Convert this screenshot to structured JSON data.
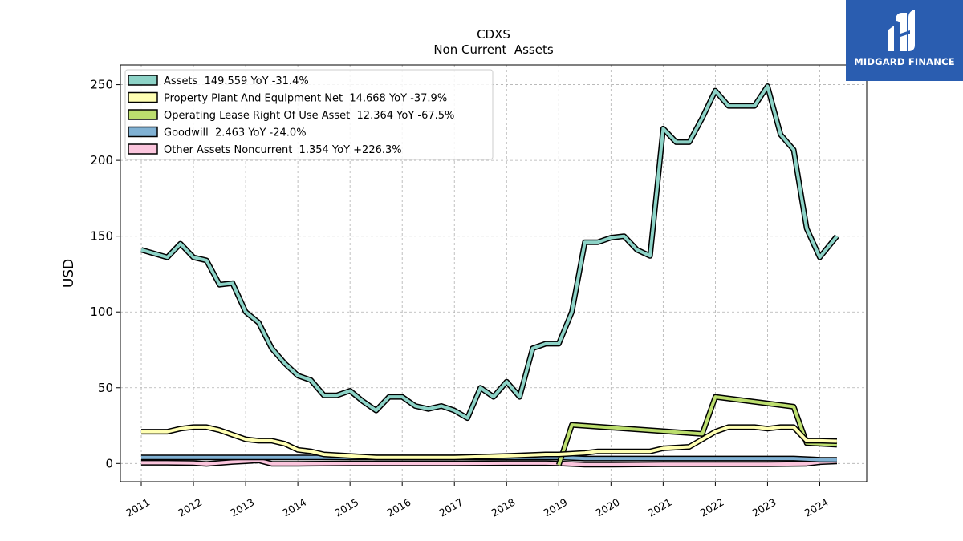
{
  "branding": {
    "logo_text": "MIDGARD FINANCE",
    "logo_bg_color": "#2a5db0"
  },
  "chart_data": {
    "type": "line",
    "title": "CDXS",
    "subtitle": "Non Current  Assets",
    "ylabel": "USD",
    "xlabel": "",
    "xlim": [
      2010.6,
      2024.9
    ],
    "ylim": [
      -12,
      263
    ],
    "yticks": [
      0,
      50,
      100,
      150,
      200,
      250
    ],
    "xticks": [
      "2011",
      "2012",
      "2013",
      "2014",
      "2015",
      "2016",
      "2017",
      "2018",
      "2019",
      "2020",
      "2021",
      "2022",
      "2023",
      "2024"
    ],
    "grid": true,
    "legend_position": "top-left",
    "series": [
      {
        "name": "Assets",
        "legend_label": "Assets  149.559 YoY -31.4%",
        "color": "#8dd3c7",
        "x": [
          2011.0,
          2011.5,
          2011.75,
          2012.0,
          2012.25,
          2012.5,
          2012.75,
          2013.0,
          2013.25,
          2013.5,
          2013.75,
          2014.0,
          2014.25,
          2014.5,
          2014.75,
          2015.0,
          2015.25,
          2015.5,
          2015.75,
          2016.0,
          2016.25,
          2016.5,
          2016.75,
          2017.0,
          2017.25,
          2017.5,
          2017.75,
          2018.0,
          2018.25,
          2018.5,
          2018.75,
          2019.0,
          2019.25,
          2019.5,
          2019.75,
          2020.0,
          2020.25,
          2020.5,
          2020.75,
          2021.0,
          2021.25,
          2021.5,
          2021.75,
          2022.0,
          2022.25,
          2022.5,
          2022.75,
          2023.0,
          2023.25,
          2023.5,
          2023.75,
          2024.0,
          2024.33
        ],
        "values": [
          141,
          136,
          145,
          136,
          134,
          118,
          119,
          100,
          93,
          76,
          66,
          58,
          55,
          45,
          45,
          48,
          41,
          35,
          44,
          44,
          38,
          36,
          38,
          35,
          30,
          50,
          44,
          54,
          44,
          76,
          79,
          79,
          100,
          146,
          146,
          149,
          150,
          141,
          137,
          221,
          212,
          212,
          228,
          246,
          236,
          236,
          236,
          249,
          217,
          207,
          155,
          136,
          150
        ]
      },
      {
        "name": "Property Plant And Equipment Net",
        "legend_label": "Property Plant And Equipment Net  14.668 YoY -37.9%",
        "color": "#ffffb3",
        "x": [
          2011.0,
          2011.5,
          2011.75,
          2012.0,
          2012.25,
          2012.5,
          2012.75,
          2013.0,
          2013.25,
          2013.5,
          2013.75,
          2014.0,
          2014.25,
          2014.5,
          2015.0,
          2015.5,
          2016.0,
          2017.0,
          2018.0,
          2018.75,
          2019.0,
          2019.5,
          2019.75,
          2020.0,
          2020.5,
          2020.75,
          2021.0,
          2021.5,
          2021.75,
          2022.0,
          2022.25,
          2022.5,
          2022.75,
          2023.0,
          2023.25,
          2023.5,
          2023.75,
          2024.0,
          2024.33
        ],
        "values": [
          21,
          21,
          23,
          24,
          24,
          22,
          19,
          16,
          15,
          15,
          13,
          9,
          8,
          6,
          5,
          4,
          4,
          4,
          5,
          6,
          6,
          7,
          8,
          8,
          8,
          8,
          10,
          11,
          16,
          21,
          24,
          24,
          24,
          23,
          24,
          24,
          15,
          15,
          14.7
        ]
      },
      {
        "name": "Operating Lease Right Of Use Asset",
        "legend_label": "Operating Lease Right Of Use Asset  12.364 YoY -67.5%",
        "color": "#bcde6e",
        "x": [
          2019.0,
          2019.25,
          2021.75,
          2022.0,
          2023.5,
          2023.75,
          2024.33
        ],
        "values": [
          -1,
          25.5,
          19.5,
          44,
          37.5,
          13.5,
          12.4
        ]
      },
      {
        "name": "Goodwill",
        "legend_label": "Goodwill  2.463 YoY -24.0%",
        "color": "#80b1d3",
        "x": [
          2011.0,
          2012.0,
          2013.0,
          2014.0,
          2015.0,
          2016.0,
          2017.0,
          2018.0,
          2019.0,
          2019.5,
          2020.0,
          2021.0,
          2022.0,
          2023.0,
          2023.5,
          2024.0,
          2024.33
        ],
        "values": [
          4,
          4,
          4,
          4,
          4,
          4,
          4,
          4,
          4,
          3.3,
          3.3,
          3.3,
          3.3,
          3.3,
          3.3,
          2.5,
          2.46
        ]
      },
      {
        "name": "Other Assets Noncurrent",
        "legend_label": "Other Assets Noncurrent  1.354 YoY +226.3%",
        "color": "#fbc5dd",
        "x": [
          2011.0,
          2011.5,
          2012.0,
          2012.25,
          2012.75,
          2013.0,
          2013.25,
          2013.5,
          2014.0,
          2015.0,
          2016.0,
          2017.0,
          2018.0,
          2018.75,
          2019.0,
          2019.5,
          2020.0,
          2021.0,
          2022.0,
          2023.0,
          2023.75,
          2024.0,
          2024.33
        ],
        "values": [
          0.5,
          0.5,
          0.3,
          -0.3,
          1,
          1.5,
          2,
          -0.2,
          -0.2,
          0,
          0,
          0,
          0.2,
          0.2,
          0,
          -0.8,
          -0.8,
          -0.5,
          -0.5,
          -0.5,
          -0.2,
          0.9,
          1.35
        ]
      }
    ]
  }
}
